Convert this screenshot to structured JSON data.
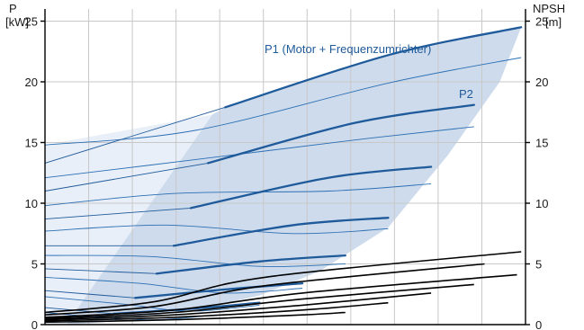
{
  "chart_data": {
    "type": "line",
    "left_axis": {
      "title_line1": "P",
      "title_line2": "[kW]",
      "ylim": [
        0,
        26
      ],
      "ticks": [
        "0",
        "5",
        "10",
        "15",
        "20",
        "25"
      ],
      "tick_values": [
        0,
        5,
        10,
        15,
        20,
        25
      ]
    },
    "right_axis": {
      "title_line1": "NPSH",
      "title_line2": "[m]",
      "ylim": [
        0,
        26
      ],
      "ticks": [
        "0",
        "5",
        "10",
        "15",
        "20",
        "25"
      ],
      "tick_values": [
        0,
        5,
        10,
        15,
        20,
        25
      ]
    },
    "xlim": [
      0,
      11.2
    ],
    "grid": true,
    "shaded_region_color": "#cddbec",
    "light_region_color": "#e8eff8",
    "colors": {
      "p1": "#1f5a9b",
      "p2": "#2c6fb4",
      "npsh": "#000000",
      "grid": "#c8c8c8"
    },
    "labels": [
      {
        "text": "P1 (Motor + Frequenzumrichter)",
        "key": "p1"
      },
      {
        "text": "P2",
        "key": "p2"
      }
    ],
    "p1_series": [
      {
        "values": [
          [
            0,
            13.3
          ],
          [
            4.2,
            17.9
          ],
          [
            8,
            22.2
          ],
          [
            11.1,
            24.5
          ]
        ]
      },
      {
        "values": [
          [
            0,
            11.0
          ],
          [
            3.8,
            13.3
          ],
          [
            7.2,
            16.6
          ],
          [
            10.0,
            18.1
          ]
        ]
      },
      {
        "values": [
          [
            0,
            8.7
          ],
          [
            3.4,
            9.6
          ],
          [
            6.6,
            12.1
          ],
          [
            9.0,
            13.0
          ]
        ]
      },
      {
        "values": [
          [
            0,
            6.5
          ],
          [
            3.0,
            6.5
          ],
          [
            5.8,
            8.2
          ],
          [
            8.0,
            8.8
          ]
        ]
      },
      {
        "values": [
          [
            0,
            4.6
          ],
          [
            2.6,
            4.2
          ],
          [
            5.0,
            5.2
          ],
          [
            7.0,
            5.7
          ]
        ]
      },
      {
        "values": [
          [
            0,
            2.8
          ],
          [
            2.1,
            2.2
          ],
          [
            4.2,
            2.9
          ],
          [
            6.0,
            3.4
          ]
        ]
      },
      {
        "values": [
          [
            0,
            1.4
          ],
          [
            1.6,
            0.9
          ],
          [
            3.4,
            1.3
          ],
          [
            5.0,
            1.8
          ]
        ]
      }
    ],
    "p2_series": [
      {
        "values": [
          [
            0,
            14.8
          ],
          [
            3.5,
            16.0
          ],
          [
            8,
            19.9
          ],
          [
            11.1,
            22.0
          ]
        ]
      },
      {
        "values": [
          [
            0,
            12.1
          ],
          [
            3.3,
            13.5
          ],
          [
            7.2,
            15.2
          ],
          [
            10.0,
            16.3
          ]
        ]
      },
      {
        "values": [
          [
            0,
            9.8
          ],
          [
            3.0,
            10.8
          ],
          [
            6.6,
            11.0
          ],
          [
            9.0,
            11.6
          ]
        ]
      },
      {
        "values": [
          [
            0,
            7.7
          ],
          [
            2.8,
            8.2
          ],
          [
            5.8,
            7.5
          ],
          [
            8.0,
            7.9
          ]
        ]
      },
      {
        "values": [
          [
            0,
            5.7
          ],
          [
            2.5,
            5.6
          ],
          [
            5.0,
            4.8
          ],
          [
            7.0,
            5.0
          ]
        ]
      },
      {
        "values": [
          [
            0,
            3.9
          ],
          [
            2.2,
            3.4
          ],
          [
            4.2,
            2.6
          ],
          [
            6.0,
            3.0
          ]
        ]
      },
      {
        "values": [
          [
            0,
            2.3
          ],
          [
            1.8,
            1.7
          ],
          [
            3.4,
            1.1
          ],
          [
            5.0,
            1.6
          ]
        ]
      },
      {
        "values": [
          [
            0,
            1.0
          ],
          [
            1.3,
            0.6
          ],
          [
            2.6,
            0.4
          ],
          [
            4.0,
            0.8
          ]
        ]
      }
    ],
    "npsh_series": [
      {
        "values": [
          [
            0,
            0.2
          ],
          [
            3,
            0.4
          ],
          [
            6,
            0.8
          ],
          [
            7.0,
            1.0
          ]
        ]
      },
      {
        "values": [
          [
            0,
            0.3
          ],
          [
            3,
            0.6
          ],
          [
            6,
            1.2
          ],
          [
            8.0,
            1.8
          ]
        ]
      },
      {
        "values": [
          [
            0,
            0.4
          ],
          [
            3,
            0.8
          ],
          [
            6,
            1.6
          ],
          [
            9.0,
            2.6
          ]
        ]
      },
      {
        "values": [
          [
            0,
            0.5
          ],
          [
            3,
            1.0
          ],
          [
            6,
            2.1
          ],
          [
            10.0,
            3.3
          ]
        ]
      },
      {
        "values": [
          [
            0,
            0.6
          ],
          [
            3,
            1.2
          ],
          [
            6,
            2.6
          ],
          [
            11.0,
            4.1
          ]
        ]
      },
      {
        "values": [
          [
            0,
            0.8
          ],
          [
            3,
            1.5
          ],
          [
            6,
            3.2
          ],
          [
            12.0,
            5.0
          ]
        ]
      },
      {
        "values": [
          [
            0,
            1.0
          ],
          [
            3,
            1.9
          ],
          [
            6,
            3.9
          ],
          [
            13.0,
            6.0
          ]
        ]
      }
    ]
  }
}
